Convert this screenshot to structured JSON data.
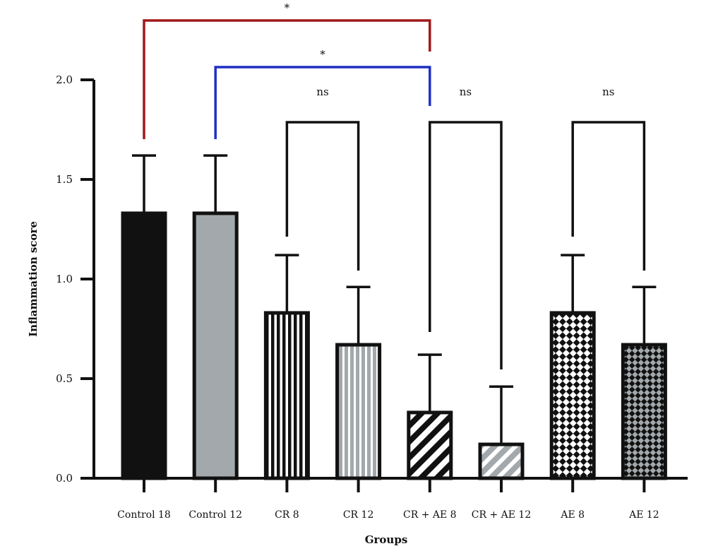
{
  "chart_data": {
    "type": "bar",
    "title": "",
    "xlabel": "Groups",
    "ylabel": "Inflammation score",
    "ylim": [
      0,
      2.0
    ],
    "yticks": [
      0.0,
      0.5,
      1.0,
      1.5,
      2.0
    ],
    "ytick_labels": [
      "0.0",
      "0.5",
      "1.0",
      "1.5",
      "2.0"
    ],
    "categories": [
      "Control 18",
      "Control 12",
      "CR 8",
      "CR 12",
      "CR + AE 8",
      "CR + AE 12",
      "AE 8",
      "AE 12"
    ],
    "values": [
      1.33,
      1.33,
      0.83,
      0.67,
      0.33,
      0.17,
      0.83,
      0.67
    ],
    "error": [
      0.29,
      0.29,
      0.29,
      0.29,
      0.29,
      0.29,
      0.29,
      0.29
    ],
    "bar_styles": [
      {
        "fill": "solid-black"
      },
      {
        "fill": "solid-gray"
      },
      {
        "fill": "vertical-stripes-black"
      },
      {
        "fill": "vertical-stripes-gray"
      },
      {
        "fill": "diagonal-stripes-black"
      },
      {
        "fill": "diagonal-stripes-gray"
      },
      {
        "fill": "checker-black"
      },
      {
        "fill": "checker-gray"
      }
    ],
    "colors": {
      "black": "#111111",
      "gray": "#a2a8ab",
      "white": "#ffffff",
      "red": "#a01818",
      "blue": "#1f2fc4"
    },
    "comparisons": [
      {
        "from": 0,
        "to": 4,
        "label": "*",
        "color": "red"
      },
      {
        "from": 1,
        "to": 4,
        "label": "*",
        "color": "blue"
      },
      {
        "from": 2,
        "to": 3,
        "label": "ns",
        "color": "black"
      },
      {
        "from": 4,
        "to": 5,
        "label": "ns",
        "color": "black"
      },
      {
        "from": 6,
        "to": 7,
        "label": "ns",
        "color": "black"
      }
    ],
    "grid": false,
    "legend": "none"
  }
}
